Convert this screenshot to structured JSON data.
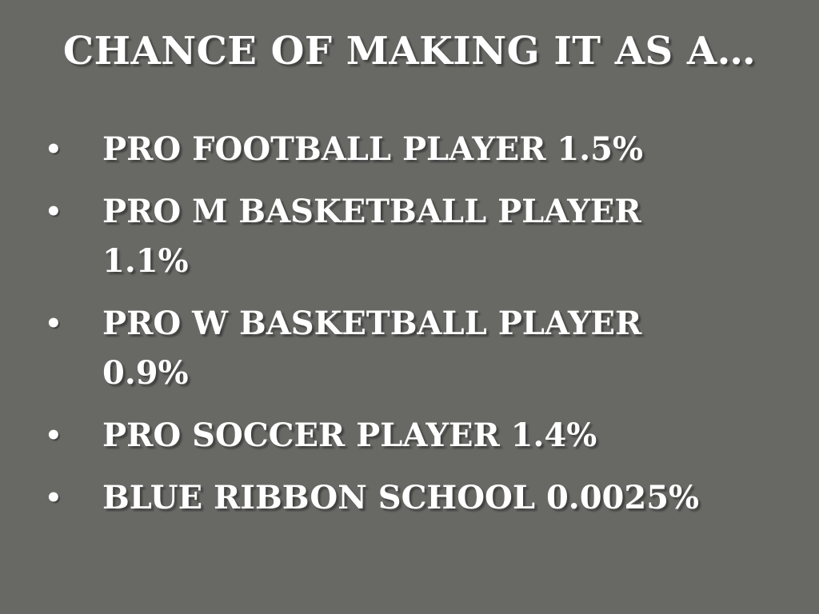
{
  "slide": {
    "title": "CHANCE OF MAKING IT AS A…",
    "bullet_glyph": "•",
    "bullets": [
      {
        "lines": [
          "PRO FOOTBALL PLAYER 1.5%"
        ]
      },
      {
        "lines": [
          "PRO M BASKETBALL PLAYER",
          "1.1%"
        ]
      },
      {
        "lines": [
          "PRO W BASKETBALL PLAYER",
          "0.9%"
        ]
      },
      {
        "lines": [
          "PRO SOCCER PLAYER 1.4%"
        ]
      },
      {
        "lines": [
          "BLUE RIBBON SCHOOL 0.0025%"
        ]
      }
    ],
    "colors": {
      "background": "#686865",
      "text": "#ffffff"
    }
  }
}
